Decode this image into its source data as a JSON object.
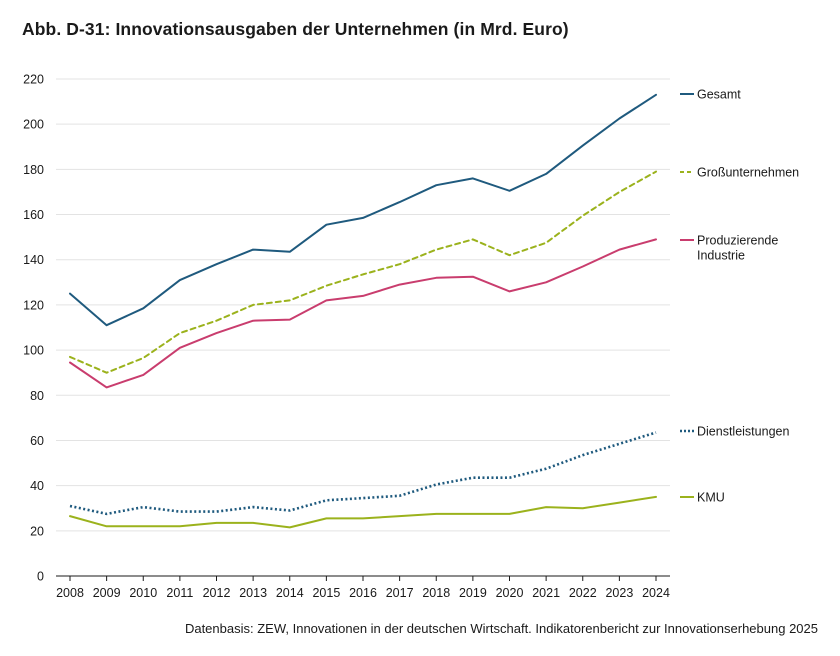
{
  "title": "Abb. D-31: Innovationsausgaben der Unternehmen (in Mrd. Euro)",
  "source": "Datenbasis: ZEW, Innovationen in der deutschen Wirtschaft. Indikatorenbericht zur Innovationserhebung 2025",
  "chart_data": {
    "type": "line",
    "title": "Abb. D-31: Innovationsausgaben der Unternehmen (in Mrd. Euro)",
    "xlabel": "",
    "ylabel": "",
    "x": [
      "2008",
      "2009",
      "2010",
      "2011",
      "2012",
      "2013",
      "2014",
      "2015",
      "2016",
      "2017",
      "2018",
      "2019",
      "2020",
      "2021",
      "2022",
      "2023",
      "2024"
    ],
    "ylim": [
      0,
      220
    ],
    "yticks": [
      0,
      20,
      40,
      60,
      80,
      100,
      120,
      140,
      160,
      180,
      200,
      220
    ],
    "grid": true,
    "legend_position": "right",
    "series": [
      {
        "name": "Gesamt",
        "color": "#1f5a7e",
        "dash": "solid",
        "values": [
          125,
          111,
          118.5,
          131,
          138,
          144.5,
          143.5,
          155.5,
          158.5,
          165.5,
          173,
          176,
          170.5,
          178,
          190.5,
          202.5,
          213
        ]
      },
      {
        "name": "Großunternehmen",
        "color": "#9bb21c",
        "dash": "dashed",
        "values": [
          97,
          90,
          96.5,
          107.5,
          113,
          120,
          122,
          128.5,
          133.5,
          138,
          144.5,
          149,
          142,
          147.5,
          159.5,
          170,
          179
        ]
      },
      {
        "name": "Produzierende Industrie",
        "color": "#c93d6e",
        "dash": "solid",
        "values": [
          94.5,
          83.5,
          89,
          101,
          107.5,
          113,
          113.5,
          122,
          124,
          129,
          132,
          132.5,
          126,
          130,
          137,
          144.5,
          149
        ]
      },
      {
        "name": "Dienstleistungen",
        "color": "#1f5a7e",
        "dash": "dotted",
        "values": [
          31,
          27.5,
          30.5,
          28.5,
          28.5,
          30.5,
          29,
          33.5,
          34.5,
          35.5,
          40.5,
          43.5,
          43.5,
          47.5,
          53.5,
          58.5,
          63.5
        ]
      },
      {
        "name": "KMU",
        "color": "#9bb21c",
        "dash": "solid",
        "values": [
          26.5,
          22,
          22,
          22,
          23.5,
          23.5,
          21.5,
          25.5,
          25.5,
          26.5,
          27.5,
          27.5,
          27.5,
          30.5,
          30,
          32.5,
          35
        ]
      }
    ]
  }
}
